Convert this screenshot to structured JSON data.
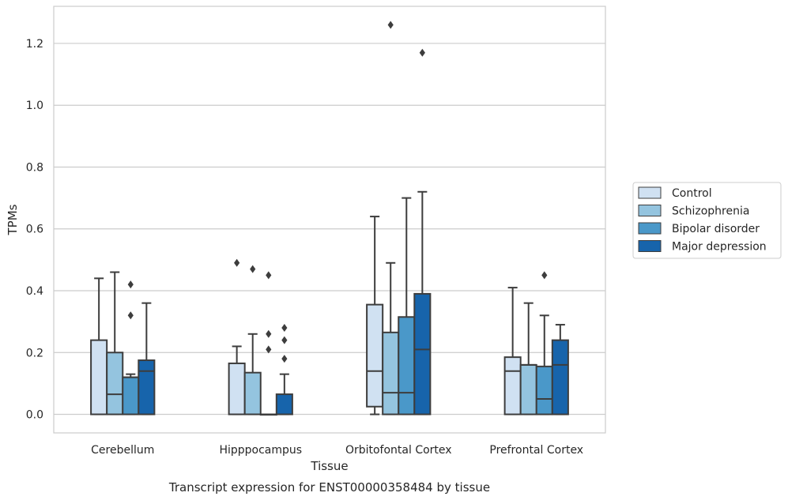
{
  "chart_data": {
    "type": "box",
    "caption": "Transcript expression for ENST00000358484 by tissue",
    "xlabel": "Tissue",
    "ylabel": "TPMs",
    "ylim": [
      -0.06,
      1.32
    ],
    "yticks": [
      0.0,
      0.2,
      0.4,
      0.6,
      0.8,
      1.0,
      1.2
    ],
    "ytick_labels": [
      "0.0",
      "0.2",
      "0.4",
      "0.6",
      "0.8",
      "1.0",
      "1.2"
    ],
    "grid": "horizontal",
    "legend_position": "right",
    "categories": [
      "Cerebellum",
      "Hipppocampus",
      "Orbitofontal Cortex",
      "Prefrontal Cortex"
    ],
    "series": [
      {
        "name": "Control",
        "color": "#d0e1f2",
        "boxes": [
          {
            "whislo": 0.0,
            "q1": 0.0,
            "med": 0.0,
            "q3": 0.24,
            "whishi": 0.44,
            "fliers": []
          },
          {
            "whislo": 0.0,
            "q1": 0.0,
            "med": 0.0,
            "q3": 0.165,
            "whishi": 0.22,
            "fliers": [
              0.49
            ]
          },
          {
            "whislo": 0.0,
            "q1": 0.025,
            "med": 0.14,
            "q3": 0.355,
            "whishi": 0.64,
            "fliers": []
          },
          {
            "whislo": 0.0,
            "q1": 0.0,
            "med": 0.14,
            "q3": 0.185,
            "whishi": 0.41,
            "fliers": []
          }
        ]
      },
      {
        "name": "Schizophrenia",
        "color": "#94c4df",
        "boxes": [
          {
            "whislo": 0.0,
            "q1": 0.0,
            "med": 0.065,
            "q3": 0.2,
            "whishi": 0.46,
            "fliers": []
          },
          {
            "whislo": 0.0,
            "q1": 0.0,
            "med": 0.0,
            "q3": 0.135,
            "whishi": 0.26,
            "fliers": [
              0.47
            ]
          },
          {
            "whislo": 0.0,
            "q1": 0.0,
            "med": 0.07,
            "q3": 0.265,
            "whishi": 0.49,
            "fliers": [
              1.26
            ]
          },
          {
            "whislo": 0.0,
            "q1": 0.0,
            "med": 0.16,
            "q3": 0.16,
            "whishi": 0.36,
            "fliers": []
          }
        ]
      },
      {
        "name": "Bipolar disorder",
        "color": "#4a98c9",
        "boxes": [
          {
            "whislo": 0.0,
            "q1": 0.0,
            "med": 0.12,
            "q3": 0.12,
            "whishi": 0.13,
            "fliers": [
              0.32,
              0.42
            ]
          },
          {
            "whislo": 0.0,
            "q1": 0.0,
            "med": 0.0,
            "q3": 0.0,
            "whishi": 0.0,
            "fliers": [
              0.21,
              0.26,
              0.45
            ]
          },
          {
            "whislo": 0.0,
            "q1": 0.0,
            "med": 0.07,
            "q3": 0.315,
            "whishi": 0.7,
            "fliers": []
          },
          {
            "whislo": 0.0,
            "q1": 0.0,
            "med": 0.05,
            "q3": 0.155,
            "whishi": 0.32,
            "fliers": [
              0.45
            ]
          }
        ]
      },
      {
        "name": "Major depression",
        "color": "#1764ab",
        "boxes": [
          {
            "whislo": 0.0,
            "q1": 0.0,
            "med": 0.14,
            "q3": 0.175,
            "whishi": 0.36,
            "fliers": []
          },
          {
            "whislo": 0.0,
            "q1": 0.0,
            "med": 0.0,
            "q3": 0.065,
            "whishi": 0.13,
            "fliers": [
              0.18,
              0.24,
              0.28
            ]
          },
          {
            "whislo": 0.0,
            "q1": 0.0,
            "med": 0.21,
            "q3": 0.39,
            "whishi": 0.72,
            "fliers": [
              1.17
            ]
          },
          {
            "whislo": 0.0,
            "q1": 0.0,
            "med": 0.16,
            "q3": 0.24,
            "whishi": 0.29,
            "fliers": []
          }
        ]
      }
    ]
  }
}
